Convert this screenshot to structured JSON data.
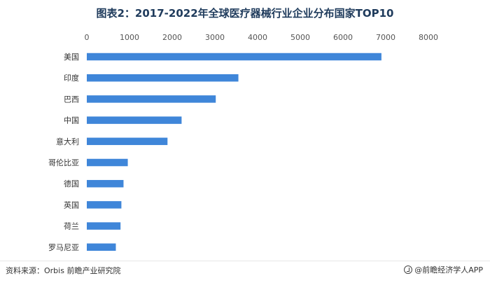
{
  "header": {
    "title": "图表2：2017-2022年全球医疗器械行业企业分布国家TOP10"
  },
  "footer": {
    "source": "资料来源：Orbis 前瞻产业研究院",
    "brand": "@前瞻经济学人APP"
  },
  "chart_data": {
    "type": "bar",
    "orientation": "horizontal",
    "title": "图表2：2017-2022年全球医疗器械行业企业分布国家TOP10",
    "categories": [
      "美国",
      "印度",
      "巴西",
      "中国",
      "意大利",
      "哥伦比亚",
      "德国",
      "英国",
      "荷兰",
      "罗马尼亚"
    ],
    "values": [
      6900,
      3550,
      3020,
      2220,
      1890,
      960,
      860,
      810,
      790,
      680
    ],
    "xlim": [
      0,
      8000
    ],
    "xticks": [
      0,
      1000,
      2000,
      3000,
      4000,
      5000,
      6000,
      7000,
      8000
    ],
    "axis_position": "top",
    "grid": false,
    "legend": "none",
    "bar_color": "#3f86d9"
  }
}
